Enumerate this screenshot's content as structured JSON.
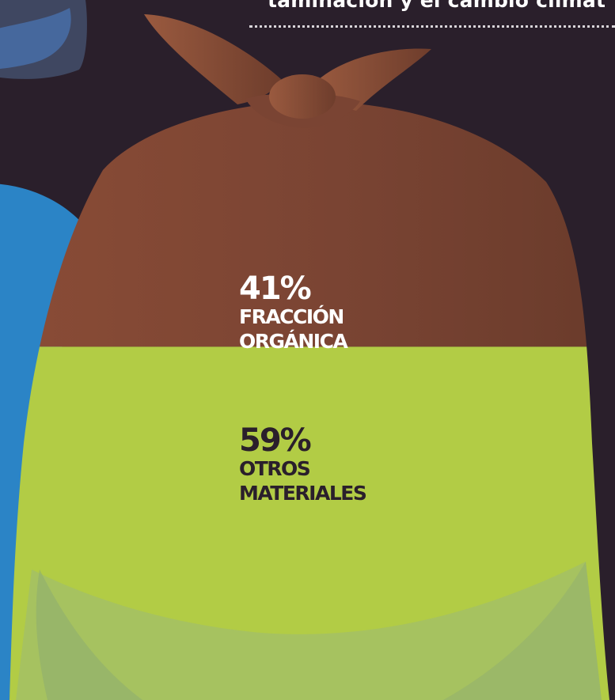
{
  "header": {
    "caption_fragment": "taminación y el cambio climát"
  },
  "chart_data": {
    "type": "pie",
    "categories": [
      "FRACCIÓN ORGÁNICA",
      "OTROS MATERIALES"
    ],
    "values": [
      41,
      59
    ],
    "unit": "%"
  },
  "labels": {
    "organic": {
      "percent": "41%",
      "line1": "FRACCIÓN",
      "line2": "ORGÁNICA"
    },
    "other": {
      "percent": "59%",
      "line1": "OTROS",
      "line2": "MATERIALES"
    }
  },
  "colors": {
    "background": "#2a1f2b",
    "organic": "#7a4433",
    "other": "#b2cc45",
    "blue_bag": "#2b84c6",
    "text_light": "#ffffff",
    "text_dark": "#2a1f2b"
  }
}
